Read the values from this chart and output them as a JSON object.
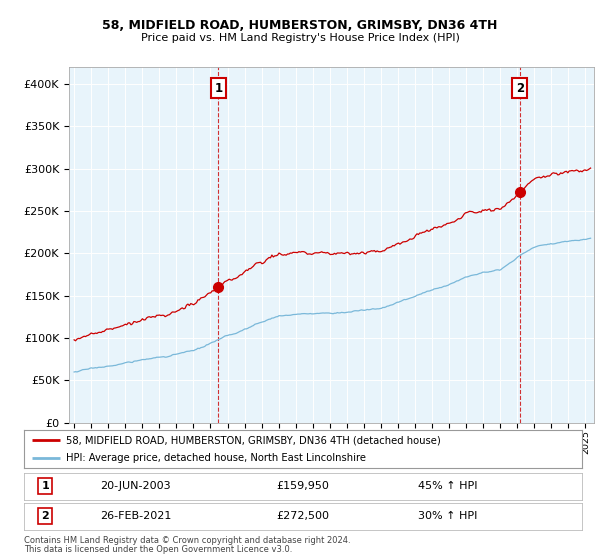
{
  "title1": "58, MIDFIELD ROAD, HUMBERSTON, GRIMSBY, DN36 4TH",
  "title2": "Price paid vs. HM Land Registry's House Price Index (HPI)",
  "legend_line1": "58, MIDFIELD ROAD, HUMBERSTON, GRIMSBY, DN36 4TH (detached house)",
  "legend_line2": "HPI: Average price, detached house, North East Lincolnshire",
  "sale1_date": "20-JUN-2003",
  "sale1_price": "£159,950",
  "sale1_hpi": "45% ↑ HPI",
  "sale2_date": "26-FEB-2021",
  "sale2_price": "£272,500",
  "sale2_hpi": "30% ↑ HPI",
  "footnote1": "Contains HM Land Registry data © Crown copyright and database right 2024.",
  "footnote2": "This data is licensed under the Open Government Licence v3.0.",
  "sale1_year": 2003.47,
  "sale2_year": 2021.15,
  "ylim_min": 0,
  "ylim_max": 420000,
  "hpi_color": "#7ab8d9",
  "price_color": "#cc0000",
  "marker1_value": 159950,
  "marker2_value": 272500,
  "background_color": "#ffffff",
  "chart_bg_color": "#e8f4fb",
  "grid_color": "#ffffff"
}
